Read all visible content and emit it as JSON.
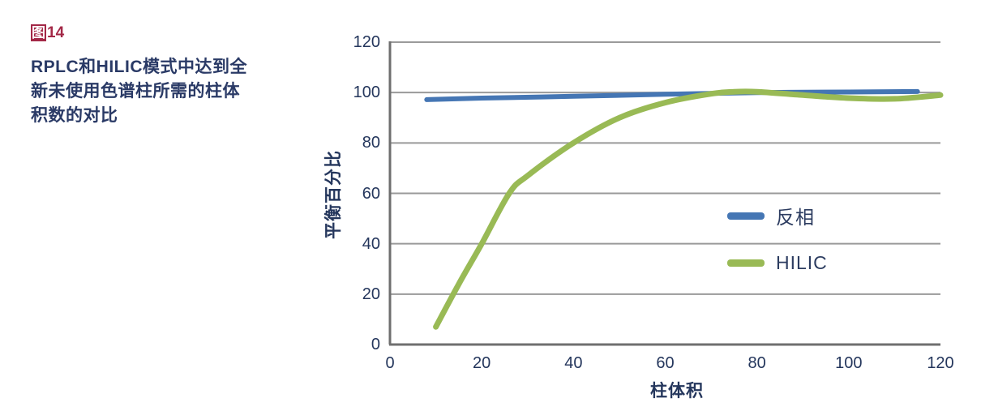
{
  "figure": {
    "label_prefix": "图",
    "label_number": "14",
    "caption_lines": [
      "RPLC和HILIC模式中达到全",
      "新未使用色谱柱所需的柱体",
      "积数的对比"
    ]
  },
  "chart_data": {
    "type": "line",
    "title": "",
    "xlabel": "柱体积",
    "ylabel": "平衡百分比",
    "xlim": [
      0,
      120
    ],
    "ylim": [
      0,
      120
    ],
    "x_ticks": [
      0,
      20,
      40,
      60,
      80,
      100,
      120
    ],
    "y_ticks": [
      0,
      20,
      40,
      60,
      80,
      100,
      120
    ],
    "grid": "horizontal",
    "legend_position": "inside-right",
    "series": [
      {
        "name": "反相",
        "color": "#4576b4",
        "points": [
          [
            8,
            97.2
          ],
          [
            20,
            97.8
          ],
          [
            40,
            98.5
          ],
          [
            60,
            99.3
          ],
          [
            80,
            100.0
          ],
          [
            100,
            100.2
          ],
          [
            115,
            100.4
          ]
        ]
      },
      {
        "name": "HILIC",
        "color": "#99ba55",
        "points": [
          [
            10,
            7
          ],
          [
            15,
            24
          ],
          [
            20,
            40
          ],
          [
            26,
            60
          ],
          [
            30,
            67
          ],
          [
            40,
            80
          ],
          [
            50,
            90
          ],
          [
            60,
            96
          ],
          [
            70,
            99.5
          ],
          [
            75,
            100.3
          ],
          [
            80,
            100.3
          ],
          [
            90,
            99
          ],
          [
            100,
            97.8
          ],
          [
            110,
            97.5
          ],
          [
            120,
            99
          ]
        ]
      }
    ]
  },
  "colors": {
    "gridline": "#9a9a9a",
    "axis": "#6f6f6f",
    "tick_text": "#24365c",
    "caption_text": "#2a3a66",
    "figure_label": "#a32847",
    "background": "#ffffff"
  }
}
